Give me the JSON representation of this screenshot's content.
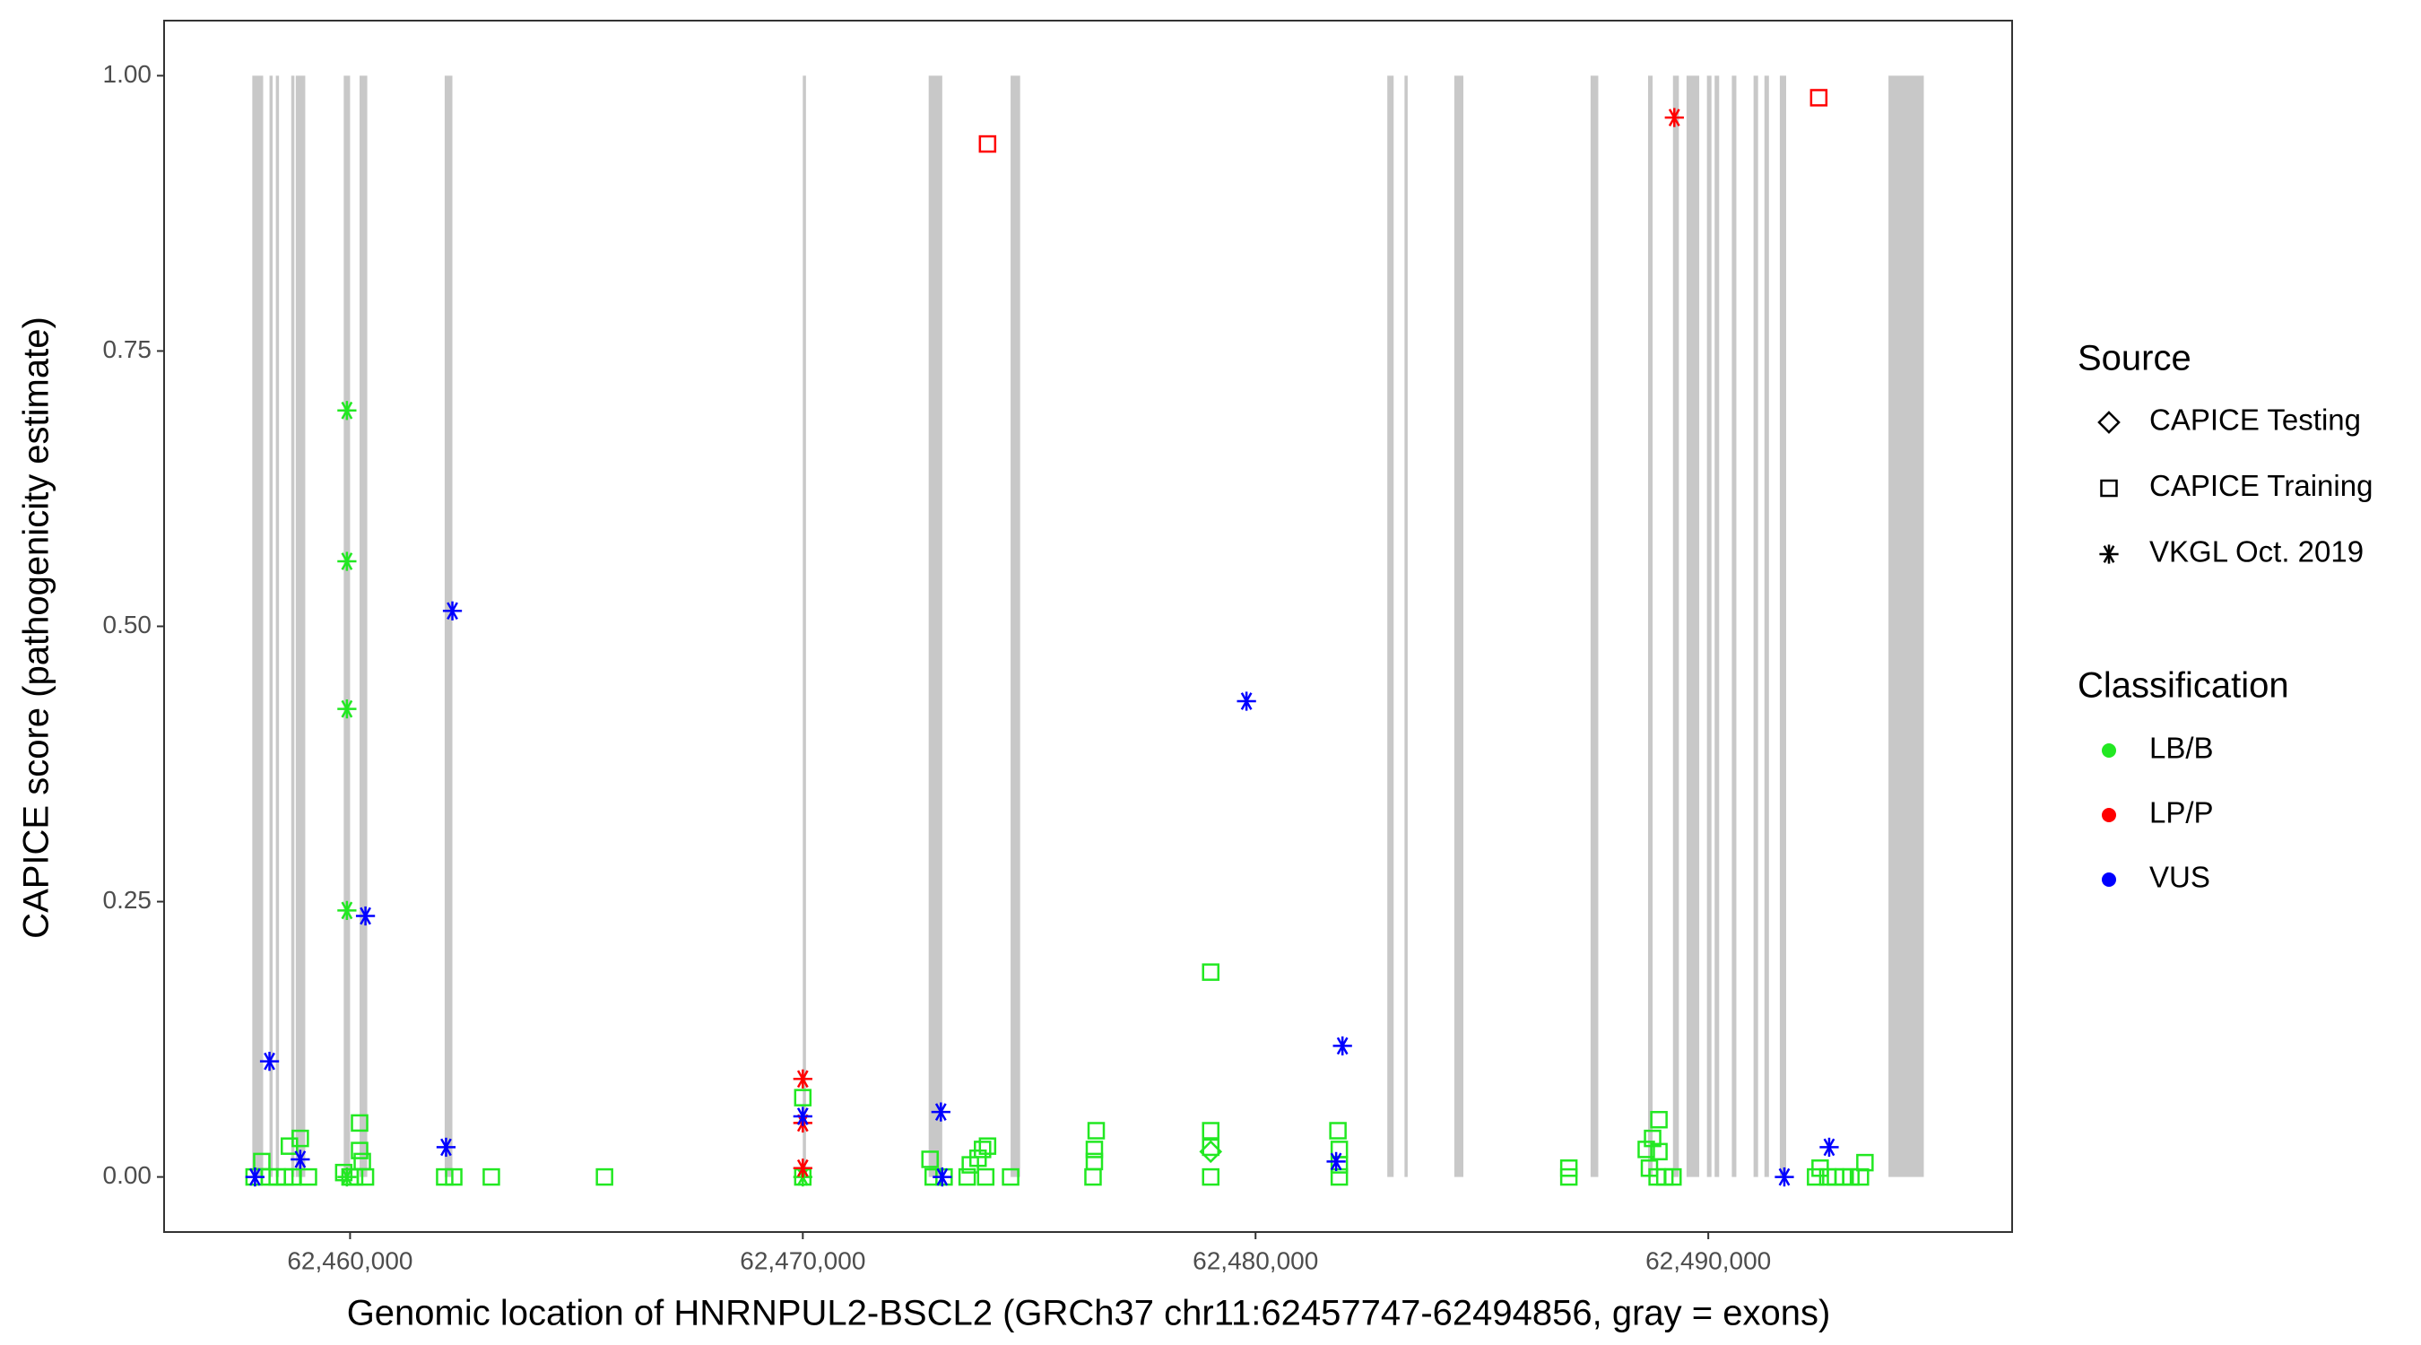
{
  "chart_data": {
    "type": "scatter",
    "x_label": "Genomic location of HNRNPUL2-BSCL2 (GRCh37 chr11:62457747-62494856, gray = exons)",
    "y_label": "CAPICE score (pathogenicity estimate)",
    "xlim": [
      62455892,
      62496711
    ],
    "ylim": [
      -0.05,
      1.05
    ],
    "xticks": [
      {
        "value": 62460000,
        "label": "62,460,000"
      },
      {
        "value": 62470000,
        "label": "62,470,000"
      },
      {
        "value": 62480000,
        "label": "62,480,000"
      },
      {
        "value": 62490000,
        "label": "62,490,000"
      }
    ],
    "yticks": [
      {
        "value": 0,
        "label": "0.00"
      },
      {
        "value": 0.25,
        "label": "0.25"
      },
      {
        "value": 0.5,
        "label": "0.50"
      },
      {
        "value": 0.75,
        "label": "0.75"
      },
      {
        "value": 1,
        "label": "1.00"
      }
    ],
    "exon_color": "#c8c8c8",
    "exons": [
      [
        62457840,
        62458080
      ],
      [
        62458220,
        62458290
      ],
      [
        62458360,
        62458430
      ],
      [
        62458700,
        62458770
      ],
      [
        62458800,
        62459010
      ],
      [
        62459860,
        62460000
      ],
      [
        62460210,
        62460380
      ],
      [
        62462090,
        62462260
      ],
      [
        62470000,
        62470070
      ],
      [
        62472780,
        62473080
      ],
      [
        62474590,
        62474800
      ],
      [
        62482910,
        62483050
      ],
      [
        62483290,
        62483360
      ],
      [
        62484390,
        62484590
      ],
      [
        62487400,
        62487570
      ],
      [
        62488670,
        62488770
      ],
      [
        62489220,
        62489350
      ],
      [
        62489520,
        62489800
      ],
      [
        62489970,
        62490070
      ],
      [
        62490140,
        62490240
      ],
      [
        62490520,
        62490620
      ],
      [
        62491000,
        62491100
      ],
      [
        62491240,
        62491340
      ],
      [
        62491580,
        62491720
      ],
      [
        62493980,
        62494760
      ]
    ],
    "source_title": "Source",
    "sources": [
      {
        "name": "CAPICE Testing",
        "shape": "diamond"
      },
      {
        "name": "CAPICE Training",
        "shape": "square"
      },
      {
        "name": "VKGL Oct. 2019",
        "shape": "asterisk"
      }
    ],
    "classification_title": "Classification",
    "classifications": [
      {
        "name": "LB/B",
        "color": "#22e822"
      },
      {
        "name": "LP/P",
        "color": "#ff0000"
      },
      {
        "name": "VUS",
        "color": "#0000ff"
      }
    ],
    "series": [
      {
        "source": "CAPICE Training",
        "classification": "LB/B",
        "x": [
          62457880,
          62458050,
          62458220,
          62458390,
          62458560,
          62458730,
          62458900,
          62458660,
          62459080,
          62459860,
          62460000,
          62460100,
          62460210,
          62460210,
          62460270,
          62460340,
          62462090,
          62462290,
          62463120,
          62465620,
          62470000,
          62470000,
          62472810,
          62472880,
          62473120,
          62473630,
          62473700,
          62473870,
          62473970,
          62474080,
          62474040,
          62474590,
          62476410,
          62476440,
          62476440,
          62476480,
          62479010,
          62479010,
          62479010,
          62479010,
          62481820,
          62481850,
          62481850,
          62481850,
          62486920,
          62486920,
          62488630,
          62488770,
          62488910,
          62488910,
          62488700,
          62488870,
          62489040,
          62489220,
          62492370,
          62492470,
          62492640,
          62492810,
          62492980,
          62493150,
          62493360,
          62493460
        ],
        "y": [
          0,
          0.014,
          0,
          0,
          0,
          0,
          0.035,
          0.028,
          0,
          0.004,
          0,
          0,
          0.049,
          0.024,
          0.014,
          0,
          0,
          0,
          0,
          0,
          0.072,
          0,
          0.016,
          0,
          0,
          0,
          0.011,
          0.017,
          0.025,
          0.028,
          0,
          0,
          0,
          0.014,
          0.025,
          0.042,
          0.186,
          0.042,
          0.027,
          0,
          0.042,
          0.025,
          0.011,
          0,
          0,
          0.008,
          0.025,
          0.035,
          0.052,
          0.023,
          0.008,
          0,
          0,
          0,
          0,
          0.008,
          0,
          0,
          0,
          0,
          0,
          0.013
        ]
      },
      {
        "source": "CAPICE Training",
        "classification": "LP/P",
        "x": [
          62474080,
          62492440
        ],
        "y": [
          0.938,
          0.98
        ]
      },
      {
        "source": "CAPICE Testing",
        "classification": "LB/B",
        "x": [
          62479010
        ],
        "y": [
          0.023
        ]
      },
      {
        "source": "VKGL Oct. 2019",
        "classification": "LB/B",
        "x": [
          62459930,
          62459930,
          62459930,
          62459930,
          62459930,
          62470000
        ],
        "y": [
          0.696,
          0.559,
          0.425,
          0.242,
          0,
          0
        ]
      },
      {
        "source": "VKGL Oct. 2019",
        "classification": "LP/P",
        "x": [
          62470000,
          62470000,
          62470000,
          62489250
        ],
        "y": [
          0.089,
          0.049,
          0.008,
          0.962
        ]
      },
      {
        "source": "VKGL Oct. 2019",
        "classification": "VUS",
        "x": [
          62458220,
          62457900,
          62458900,
          62460340,
          62462260,
          62462120,
          62470000,
          62473050,
          62473080,
          62479800,
          62481920,
          62481780,
          62491680,
          62492670
        ],
        "y": [
          0.105,
          0,
          0.016,
          0.237,
          0.514,
          0.027,
          0.055,
          0.059,
          0,
          0.432,
          0.119,
          0.014,
          0,
          0.027
        ]
      }
    ]
  }
}
